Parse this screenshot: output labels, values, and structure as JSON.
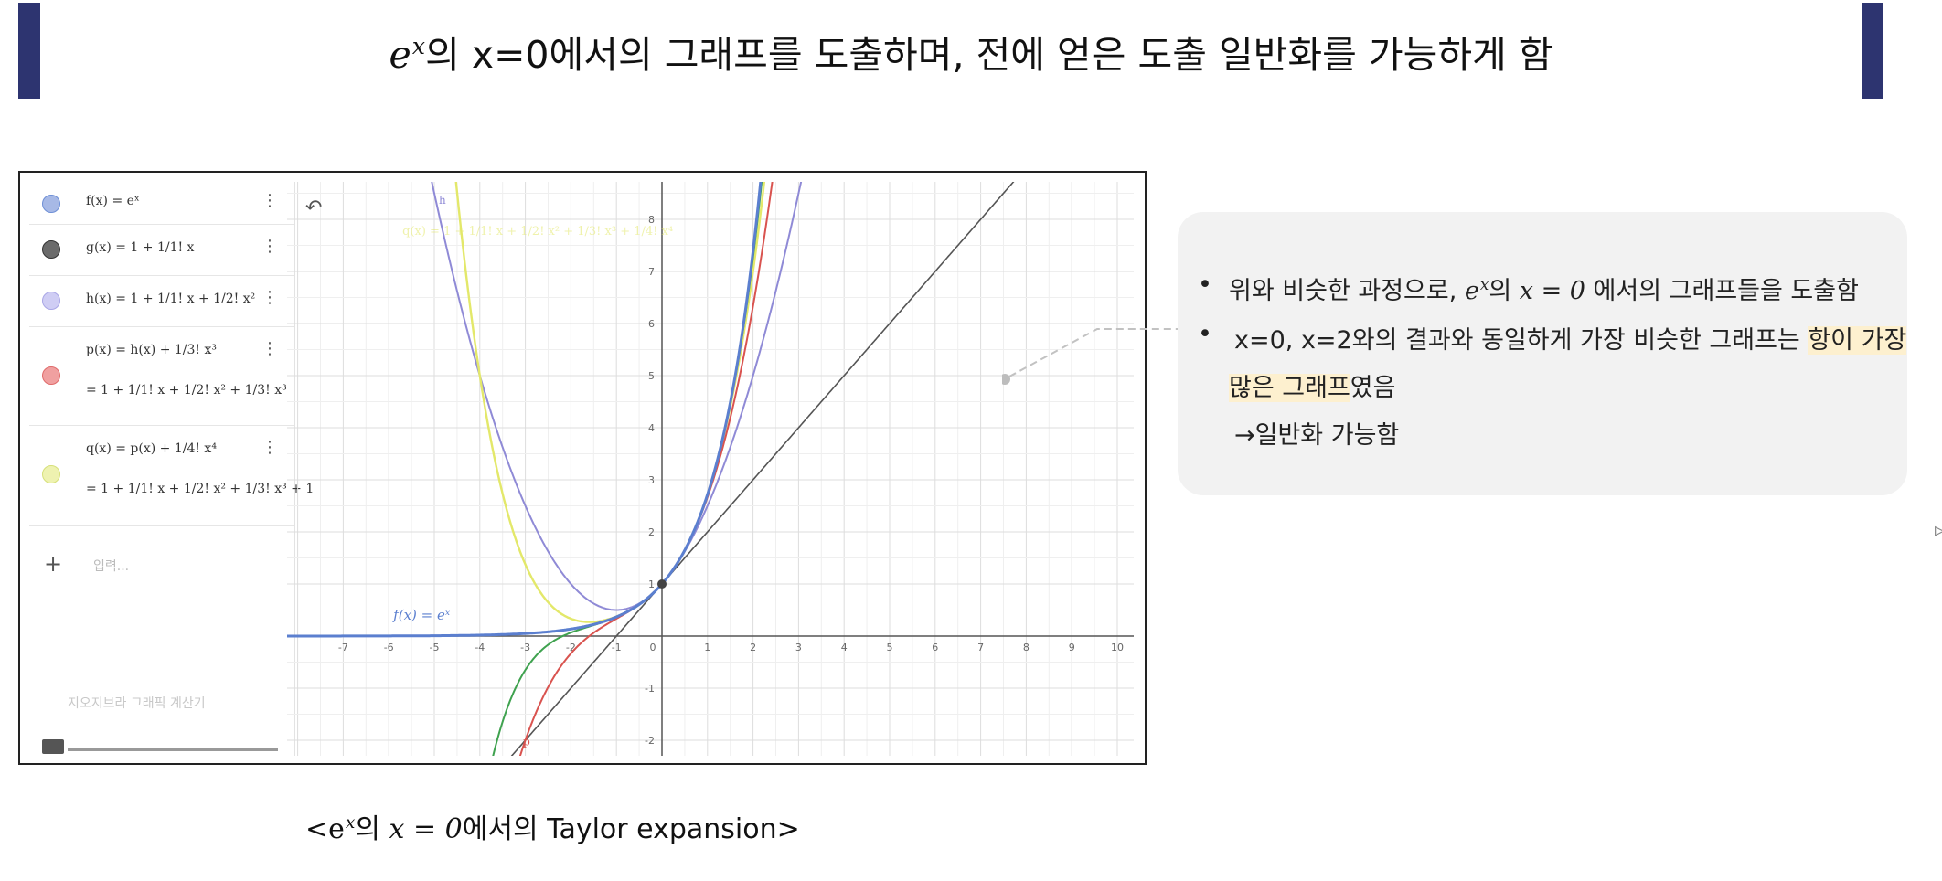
{
  "slide": {
    "title_prefix": "e",
    "title_sup": "x",
    "title_rest": "의 x=0에서의 그래프를 도출하며, 전에 얻은 도출 일반화를 가능하게 함",
    "caption_open": "<e",
    "caption_sup": "x",
    "caption_mid": "의 ",
    "caption_math": "x = 0",
    "caption_rest": "에서의 Taylor expansion>"
  },
  "algebra": {
    "items": [
      {
        "expr": "f(x) = eˣ",
        "color": "#6e8fd6"
      },
      {
        "expr": "g(x) = 1 + 1/1! x",
        "color": "#555555"
      },
      {
        "expr": "h(x) = 1 + 1/1! x + 1/2! x²",
        "color": "#a9a6e6"
      },
      {
        "expr": "p(x) = h(x) + 1/3! x³",
        "expr2": "= 1 + 1/1! x + 1/2! x² + 1/3! x³",
        "color": "#e06b6b"
      },
      {
        "expr": "q(x) = p(x) + 1/4! x⁴",
        "expr2": "= 1 + 1/1! x + 1/2! x² + 1/3! x³ + 1",
        "color": "#d6e07a"
      }
    ],
    "input_placeholder": "입력...",
    "add_symbol": "+",
    "brand": "지오지브라 그래픽 계산기",
    "kebab": "⋮"
  },
  "graph": {
    "x_ticks": [
      "-7",
      "-6",
      "-5",
      "-4",
      "-3",
      "-2",
      "-1",
      "0",
      "1",
      "2",
      "3",
      "4",
      "5",
      "6",
      "7",
      "8",
      "9",
      "10"
    ],
    "y_ticks": [
      "8",
      "7",
      "6",
      "5",
      "4",
      "3",
      "2",
      "1",
      "-1",
      "-2"
    ],
    "f_label": "f(x) = eˣ",
    "q_label": "q(x) = 1 + 1/1! x + 1/2! x² + 1/3! x³ + 1/4! x⁴",
    "p_label": "p",
    "h_label": "h",
    "undo": "↶",
    "colors": {
      "f": "#5b7fcf",
      "g": "#555555",
      "h": "#8f8ad6",
      "p": "#d9534f",
      "q": "#e3e86a",
      "green": "#3fa24f"
    }
  },
  "note": {
    "bullet": "•",
    "b1_pre": "위와 비슷한 과정으로, ",
    "b1_e": "e",
    "b1_sup": "x",
    "b1_mid": "의 ",
    "b1_math": "x = 0",
    "b1_post": " 에서의 그래프들을 도출함",
    "b2_line1": "x=0, x=2와의 결과와 동일하게 가장 비슷한 그래프는 ",
    "b2_hl1": "항이 가장",
    "b2_hl2": "많은 그래프",
    "b2_tail": "였음",
    "b2_line3": "→일반화 가능함"
  }
}
